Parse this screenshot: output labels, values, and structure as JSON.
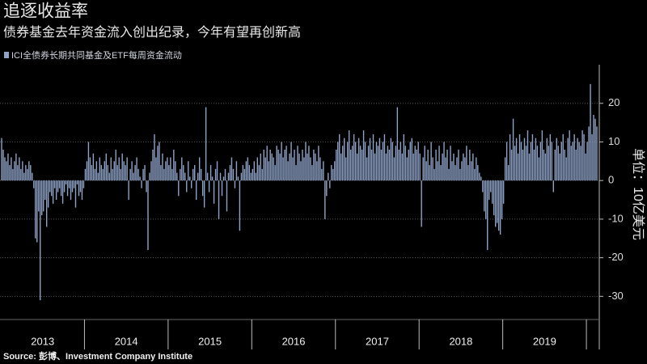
{
  "chart_data": {
    "type": "bar",
    "title": "追逐收益率",
    "subtitle": "债券基金去年资金流入创出纪录，今年有望再创新高",
    "legend": "ICI全债券长期共同基金及ETF每周资金流动",
    "source": "Source: 彭博、Investment Company Institute",
    "y_axis_label": "单位：10亿美元",
    "color": "#8fa3c8",
    "grid": true,
    "ylim": [
      -36,
      30
    ],
    "yticks": [
      -30,
      -20,
      -10,
      0,
      10,
      20
    ],
    "years": [
      "2013",
      "2014",
      "2015",
      "2016",
      "2017",
      "2018",
      "2019",
      null
    ],
    "weekly_values_by_year": [
      [
        11,
        8,
        6,
        5,
        7,
        4,
        6,
        3,
        5,
        7,
        4,
        6,
        3,
        5,
        2,
        4,
        3,
        5,
        4,
        2,
        -2,
        -15,
        -16,
        -8,
        -31,
        -9,
        -8,
        -5,
        -12,
        -7,
        -3,
        -4,
        -6,
        -2,
        -5,
        -3,
        -2,
        -4,
        -6,
        -3,
        -1,
        -4,
        -2,
        -5,
        -3,
        -2,
        -7,
        -1,
        -4,
        -3,
        -5,
        -2
      ],
      [
        3,
        5,
        10,
        6,
        4,
        7,
        3,
        5,
        2,
        6,
        4,
        3,
        5,
        7,
        4,
        2,
        6,
        3,
        5,
        8,
        4,
        6,
        3,
        7,
        5,
        4,
        6,
        -5,
        3,
        5,
        2,
        4,
        6,
        3,
        1,
        -2,
        3,
        4,
        -3,
        -18,
        2,
        5,
        8,
        12,
        6,
        9,
        10,
        4,
        7,
        3,
        5,
        6
      ],
      [
        4,
        6,
        3,
        8,
        5,
        2,
        -4,
        3,
        6,
        4,
        2,
        -3,
        5,
        1,
        -2,
        3,
        4,
        -5,
        2,
        6,
        3,
        -4,
        -7,
        19,
        2,
        -3,
        4,
        1,
        -6,
        3,
        5,
        -10,
        2,
        -4,
        1,
        3,
        -8,
        2,
        4,
        6,
        3,
        -2,
        5,
        1,
        -13,
        2,
        4,
        3,
        5,
        6,
        4,
        2
      ],
      [
        3,
        5,
        2,
        6,
        4,
        7,
        3,
        8,
        6,
        9,
        5,
        8,
        7,
        6,
        4,
        9,
        8,
        7,
        10,
        6,
        8,
        9,
        5,
        7,
        10,
        6,
        8,
        4,
        9,
        7,
        5,
        8,
        6,
        10,
        7,
        9,
        6,
        4,
        8,
        7,
        5,
        9,
        6,
        3,
        5,
        -10,
        -4,
        2,
        -2,
        4,
        3,
        5
      ],
      [
        8,
        10,
        12,
        7,
        9,
        11,
        6,
        10,
        13,
        8,
        9,
        12,
        10,
        7,
        11,
        9,
        8,
        13,
        10,
        6,
        9,
        11,
        8,
        12,
        7,
        10,
        9,
        11,
        8,
        10,
        12,
        7,
        9,
        8,
        11,
        10,
        6,
        9,
        19,
        8,
        10,
        7,
        12,
        9,
        6,
        8,
        10,
        11,
        7,
        9,
        8,
        10
      ],
      [
        7,
        -12,
        6,
        9,
        5,
        8,
        4,
        10,
        6,
        3,
        8,
        5,
        9,
        4,
        7,
        10,
        6,
        8,
        3,
        9,
        5,
        7,
        4,
        6,
        8,
        3,
        5,
        7,
        6,
        9,
        4,
        8,
        5,
        7,
        3,
        6,
        4,
        2,
        1,
        -3,
        -8,
        -10,
        -18,
        -5,
        -3,
        -6,
        -9,
        -12,
        -11,
        -13,
        -14,
        -10
      ],
      [
        -6,
        6,
        10,
        4,
        12,
        8,
        16,
        9,
        11,
        7,
        12,
        10,
        8,
        11,
        9,
        13,
        7,
        10,
        12,
        8,
        11,
        9,
        6,
        10,
        13,
        8,
        7,
        11,
        9,
        12,
        10,
        -3,
        8,
        11,
        9,
        7,
        10,
        12,
        8,
        6,
        11,
        13,
        9,
        10,
        12,
        8,
        11,
        10,
        9,
        13,
        12,
        7
      ],
      [
        10,
        14,
        25,
        12,
        17,
        16,
        14
      ]
    ]
  }
}
